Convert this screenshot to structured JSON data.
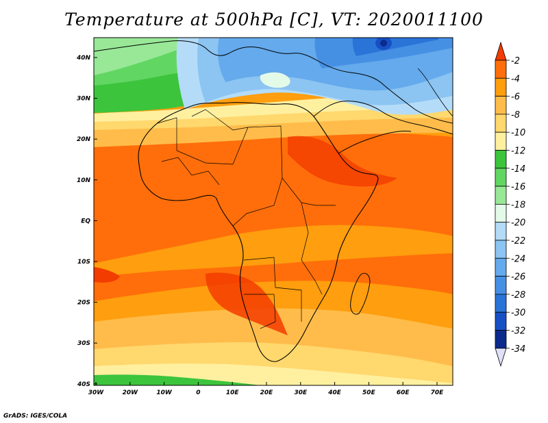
{
  "title": "Temperature at 500hPa [C], VT: 2020011100",
  "credit": "GrADS: IGES/COLA",
  "lat_labels": [
    "40N",
    "30N",
    "20N",
    "10N",
    "EQ",
    "10S",
    "20S",
    "30S",
    "40S"
  ],
  "lon_labels": [
    "30W",
    "20W",
    "10W",
    "0",
    "10E",
    "20E",
    "30E",
    "40E",
    "50E",
    "60E",
    "70E"
  ],
  "colorbar": {
    "labels": [
      "-2",
      "-4",
      "-6",
      "-8",
      "-10",
      "-12",
      "-14",
      "-16",
      "-18",
      "-20",
      "-22",
      "-24",
      "-26",
      "-28",
      "-30",
      "-32",
      "-34"
    ],
    "colors": [
      "#f33c00",
      "#ff6e0a",
      "#ff9e0e",
      "#ffbc4a",
      "#ffd86e",
      "#fff0a0",
      "#3cc43c",
      "#62d662",
      "#98e898",
      "#e4fae8",
      "#b4dcf8",
      "#8cc4f2",
      "#64aaec",
      "#4690e4",
      "#2a74d8",
      "#1650c4",
      "#0c2a8c",
      "#e0e0f8"
    ]
  }
}
